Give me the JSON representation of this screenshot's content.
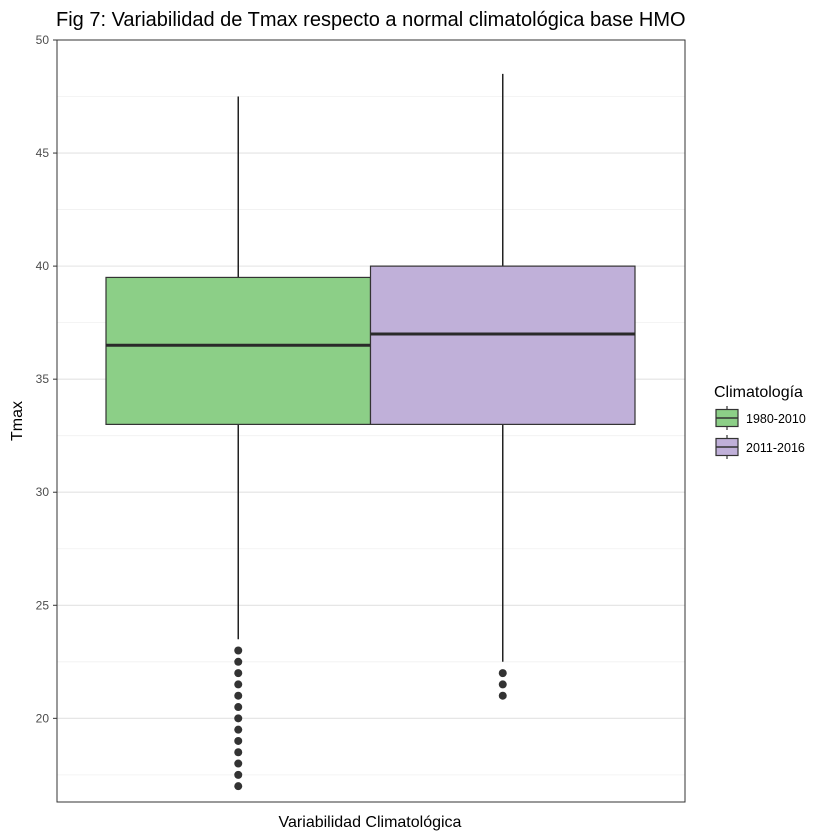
{
  "chart_data": {
    "type": "boxplot",
    "title": "Fig 7: Variabilidad de Tmax respecto a normal climatológica base HMO",
    "xlabel": "Variabilidad Climatológica",
    "ylabel": "Tmax",
    "ylim": [
      16.3,
      50
    ],
    "y_ticks": [
      20,
      25,
      30,
      35,
      40,
      45,
      50
    ],
    "grid": true,
    "legend": {
      "title": "Climatología",
      "position": "right"
    },
    "series": [
      {
        "name": "1980-2010",
        "color": "#8ccf87",
        "whisker_low": 23.5,
        "q1": 33.0,
        "median": 36.5,
        "q3": 39.5,
        "whisker_high": 47.5,
        "outliers": [
          23.0,
          22.5,
          22.0,
          21.5,
          21.0,
          20.5,
          20.0,
          19.5,
          19.0,
          18.5,
          18.0,
          17.5,
          17.0
        ]
      },
      {
        "name": "2011-2016",
        "color": "#c0b0d9",
        "whisker_low": 22.5,
        "q1": 33.0,
        "median": 37.0,
        "q3": 40.0,
        "whisker_high": 48.5,
        "outliers": [
          22.0,
          21.5,
          21.0
        ]
      }
    ]
  }
}
